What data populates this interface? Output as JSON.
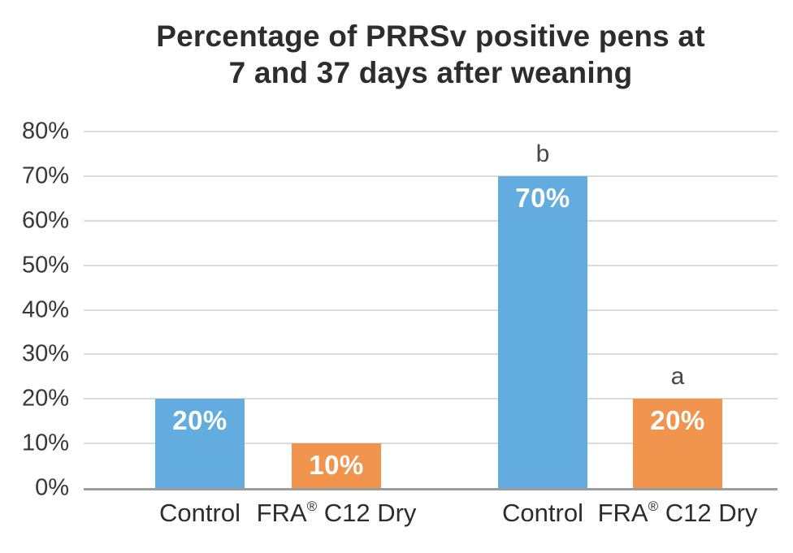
{
  "title": {
    "line1": "Percentage of PRRSv positive pens at",
    "line2": "7 and 37 days after weaning"
  },
  "chart_data": {
    "type": "bar",
    "title": "Percentage of PRRSv positive pens at 7 and 37 days after weaning",
    "xlabel": "",
    "ylabel": "",
    "ymin": 0,
    "ymax": 80,
    "grid": true,
    "legend": "none",
    "background_color": "#FFFFFF",
    "gridline_color": "#DBDBDB",
    "baseline_color": "#9C9C9C",
    "colors": {
      "blue": "#63ACDF",
      "orange": "#F0944E"
    },
    "yticks": [
      {
        "value": 0,
        "label": "0%"
      },
      {
        "value": 10,
        "label": "10%"
      },
      {
        "value": 20,
        "label": "20%"
      },
      {
        "value": 30,
        "label": "30%"
      },
      {
        "value": 40,
        "label": "40%"
      },
      {
        "value": 50,
        "label": "50%"
      },
      {
        "value": 60,
        "label": "60%"
      },
      {
        "value": 70,
        "label": "70%"
      },
      {
        "value": 80,
        "label": "80%"
      }
    ],
    "bars": [
      {
        "category": "Control",
        "value": 20,
        "value_label": "20%",
        "color": "#63ACDF",
        "annotation": ""
      },
      {
        "category": "FRA® C12 Dry",
        "value": 10,
        "value_label": "10%",
        "color": "#F0944E",
        "annotation": ""
      },
      {
        "category": "Control",
        "value": 70,
        "value_label": "70%",
        "color": "#63ACDF",
        "annotation": "b"
      },
      {
        "category": "FRA® C12 Dry",
        "value": 20,
        "value_label": "20%",
        "color": "#F0944E",
        "annotation": "a"
      }
    ]
  }
}
